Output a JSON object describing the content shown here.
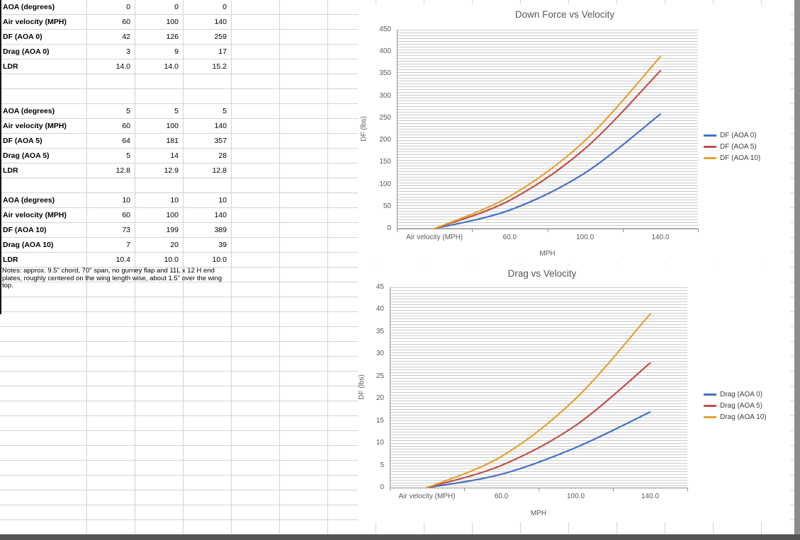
{
  "sheet": {
    "groups": [
      {
        "rows": [
          {
            "label": "AOA (degrees)",
            "v": [
              "0",
              "0",
              "0"
            ]
          },
          {
            "label": "Air velocity (MPH)",
            "v": [
              "60",
              "100",
              "140"
            ]
          },
          {
            "label": "DF (AOA 0)",
            "v": [
              "42",
              "126",
              "259"
            ]
          },
          {
            "label": "Drag (AOA 0)",
            "v": [
              "3",
              "9",
              "17"
            ]
          },
          {
            "label": "LDR",
            "v": [
              "14.0",
              "14.0",
              "15.2"
            ]
          }
        ]
      },
      {
        "rows": [
          {
            "label": "AOA (degrees)",
            "v": [
              "5",
              "5",
              "5"
            ]
          },
          {
            "label": "Air velocity (MPH)",
            "v": [
              "60",
              "100",
              "140"
            ]
          },
          {
            "label": "DF (AOA 5)",
            "v": [
              "64",
              "181",
              "357"
            ]
          },
          {
            "label": "Drag (AOA 5)",
            "v": [
              "5",
              "14",
              "28"
            ]
          },
          {
            "label": "LDR",
            "v": [
              "12.8",
              "12.9",
              "12.8"
            ]
          }
        ]
      },
      {
        "rows": [
          {
            "label": "AOA (degrees)",
            "v": [
              "10",
              "10",
              "10"
            ]
          },
          {
            "label": "Air velocity (MPH)",
            "v": [
              "60",
              "100",
              "140"
            ]
          },
          {
            "label": "DF (AOA 10)",
            "v": [
              "73",
              "199",
              "389"
            ]
          },
          {
            "label": "Drag (AOA 10)",
            "v": [
              "7",
              "20",
              "39"
            ]
          },
          {
            "label": "LDR",
            "v": [
              "10.4",
              "10.0",
              "10.0"
            ]
          }
        ]
      }
    ],
    "notes": "Notes: approx. 9.5\" chord, 70\" span, no gurney flap and 11L x 12 H end plates, roughly centered on the wing length wise, about 1.5\" over the wing top."
  },
  "chart_data": [
    {
      "type": "line",
      "title": "Down Force vs Velocity",
      "categories": [
        "Air velocity (MPH)",
        "60.0",
        "100.0",
        "140.0"
      ],
      "series": [
        {
          "name": "DF (AOA 0)",
          "values": [
            0,
            42,
            126,
            259
          ],
          "color": "#4472C4"
        },
        {
          "name": "DF (AOA 5)",
          "values": [
            0,
            64,
            181,
            357
          ],
          "color": "#C0504D"
        },
        {
          "name": "DF (AOA 10)",
          "values": [
            0,
            73,
            199,
            389
          ],
          "color": "#E2A233"
        }
      ],
      "xlabel": "MPH",
      "ylabel": "DF (lbs)",
      "ylim": [
        0,
        450
      ],
      "ytick_step": 50,
      "yticks": [
        "450",
        "400",
        "350",
        "300",
        "250",
        "200",
        "150",
        "100",
        "50",
        "0"
      ],
      "legend_position": "right",
      "smooth": true,
      "minor_gridlines": true,
      "grid": "horizontal-minor"
    },
    {
      "type": "line",
      "title": "Drag vs Velocity",
      "categories": [
        "Air velocity (MPH)",
        "60.0",
        "100.0",
        "140.0"
      ],
      "series": [
        {
          "name": "Drag (AOA 0)",
          "values": [
            0,
            3,
            9,
            17
          ],
          "color": "#4472C4"
        },
        {
          "name": "Drag (AOA 5)",
          "values": [
            0,
            5,
            14,
            28
          ],
          "color": "#C0504D"
        },
        {
          "name": "Drag (AOA 10)",
          "values": [
            0,
            7,
            20,
            39
          ],
          "color": "#E2A233"
        }
      ],
      "xlabel": "MPH",
      "ylabel": "DF (lbs)",
      "ylim": [
        0,
        45
      ],
      "ytick_step": 5,
      "yticks": [
        "45",
        "40",
        "35",
        "30",
        "25",
        "20",
        "15",
        "10",
        "5",
        "0"
      ],
      "legend_position": "right",
      "smooth": true,
      "minor_gridlines": true,
      "grid": "horizontal-minor"
    }
  ]
}
